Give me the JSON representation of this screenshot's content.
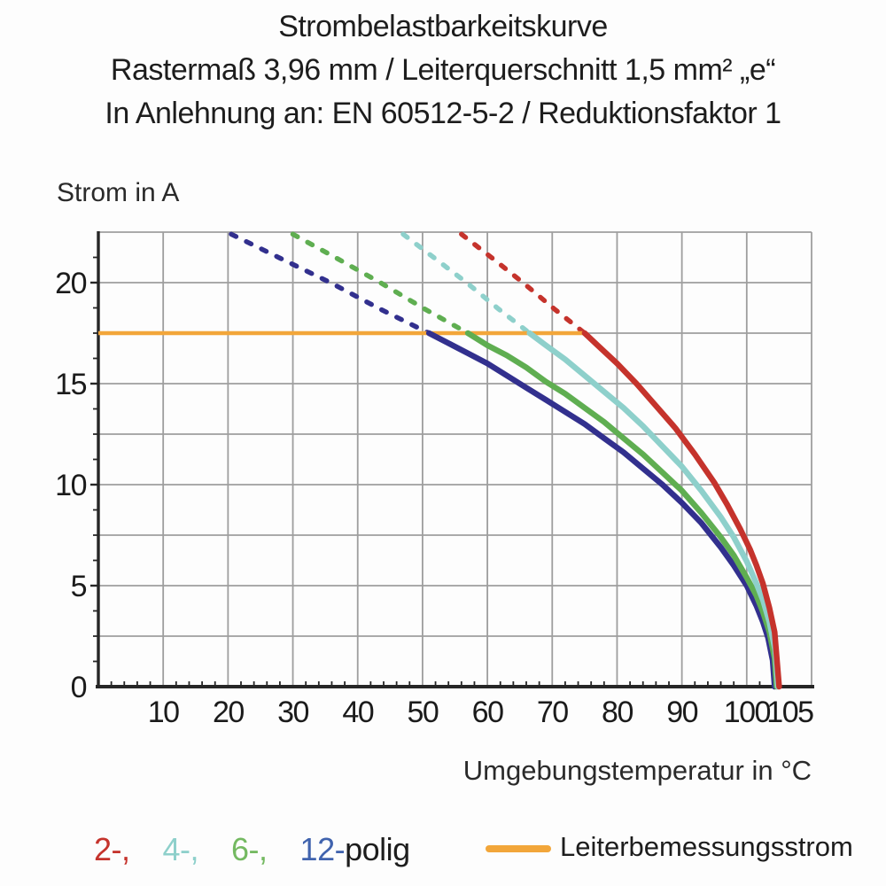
{
  "title": {
    "line1": "Strombelastbarkeitskurve",
    "line2": "Rastermaß 3,96 mm / Leiterquerschnitt 1,5 mm² „e“",
    "line3": "In Anlehnung an: EN 60512-5-2 / Reduktionsfaktor 1"
  },
  "chart_data": {
    "type": "line",
    "ylabel": "Strom in A",
    "xlabel": "Umgebungstemperatur in °C",
    "xlim": [
      0,
      110
    ],
    "ylim": [
      0,
      22.5
    ],
    "x_tick_labels": [
      10,
      20,
      30,
      40,
      50,
      60,
      70,
      80,
      90,
      100,
      105
    ],
    "x_grid_step": 10,
    "x_minor_tick_step": 2,
    "y_tick_labels": [
      0,
      5,
      10,
      15,
      20
    ],
    "y_grid_step": 2.5,
    "y_minor_tick_step": 1.25,
    "grid": true,
    "rated_line": {
      "label": "Leiterbemessungsstrom",
      "current_a": 17.5,
      "x_from": 0,
      "x_to": 75,
      "color": "#f2a63a"
    },
    "series": [
      {
        "name": "12-polig",
        "poles": 12,
        "color": "#32308e",
        "style_above_rated": "dashed",
        "dashed": [
          [
            20.5,
            22.4
          ],
          [
            28.1,
            21.2
          ],
          [
            35.8,
            20.0
          ],
          [
            43.4,
            18.7
          ],
          [
            51,
            17.5
          ]
        ],
        "solid": [
          [
            51,
            17.5
          ],
          [
            54,
            17.0
          ],
          [
            57,
            16.5
          ],
          [
            60,
            16.0
          ],
          [
            63,
            15.4
          ],
          [
            66,
            14.8
          ],
          [
            69,
            14.2
          ],
          [
            72,
            13.6
          ],
          [
            75,
            13.0
          ],
          [
            78,
            12.3
          ],
          [
            81,
            11.6
          ],
          [
            84,
            10.8
          ],
          [
            87,
            10.0
          ],
          [
            90,
            9.1
          ],
          [
            93,
            8.1
          ],
          [
            96,
            6.9
          ],
          [
            98,
            6.0
          ],
          [
            100,
            5.0
          ],
          [
            101.5,
            4.0
          ],
          [
            102.5,
            3.2
          ],
          [
            103.3,
            2.4
          ],
          [
            104,
            1.3
          ],
          [
            104.3,
            0
          ]
        ]
      },
      {
        "name": "6-polig",
        "poles": 6,
        "color": "#5fae51",
        "style_above_rated": "dashed",
        "dashed": [
          [
            30,
            22.4
          ],
          [
            36.8,
            21.2
          ],
          [
            43.5,
            20.0
          ],
          [
            50.3,
            18.7
          ],
          [
            57,
            17.5
          ]
        ],
        "solid": [
          [
            57,
            17.5
          ],
          [
            60,
            16.9
          ],
          [
            63,
            16.4
          ],
          [
            66,
            15.8
          ],
          [
            69,
            15.1
          ],
          [
            72,
            14.5
          ],
          [
            75,
            13.8
          ],
          [
            78,
            13.1
          ],
          [
            81,
            12.3
          ],
          [
            84,
            11.5
          ],
          [
            87,
            10.6
          ],
          [
            90,
            9.7
          ],
          [
            93,
            8.6
          ],
          [
            96,
            7.4
          ],
          [
            98,
            6.5
          ],
          [
            100,
            5.4
          ],
          [
            101.5,
            4.5
          ],
          [
            102.5,
            3.7
          ],
          [
            103.5,
            2.7
          ],
          [
            104.3,
            1.4
          ],
          [
            104.6,
            0
          ]
        ]
      },
      {
        "name": "4-polig",
        "poles": 4,
        "color": "#8ed0cb",
        "style_above_rated": "dashed",
        "dashed": [
          [
            47,
            22.4
          ],
          [
            51.9,
            21.2
          ],
          [
            56.8,
            20.0
          ],
          [
            61.7,
            18.7
          ],
          [
            66.5,
            17.5
          ]
        ],
        "solid": [
          [
            66.5,
            17.5
          ],
          [
            69,
            16.9
          ],
          [
            72,
            16.2
          ],
          [
            75,
            15.4
          ],
          [
            78,
            14.6
          ],
          [
            81,
            13.8
          ],
          [
            84,
            12.9
          ],
          [
            87,
            11.9
          ],
          [
            90,
            10.9
          ],
          [
            93,
            9.7
          ],
          [
            96,
            8.4
          ],
          [
            98,
            7.4
          ],
          [
            100,
            6.2
          ],
          [
            101.5,
            5.1
          ],
          [
            102.5,
            4.3
          ],
          [
            103.5,
            3.2
          ],
          [
            104.4,
            1.8
          ],
          [
            104.8,
            0
          ]
        ]
      },
      {
        "name": "2-polig",
        "poles": 2,
        "color": "#c5332c",
        "style_above_rated": "dashed",
        "dashed": [
          [
            56,
            22.4
          ],
          [
            60.8,
            21.2
          ],
          [
            65.5,
            20.0
          ],
          [
            70.3,
            18.7
          ],
          [
            75,
            17.5
          ]
        ],
        "solid": [
          [
            75,
            17.5
          ],
          [
            77,
            16.9
          ],
          [
            80,
            16.0
          ],
          [
            83,
            15.0
          ],
          [
            86,
            13.9
          ],
          [
            89,
            12.8
          ],
          [
            92,
            11.5
          ],
          [
            95,
            10.1
          ],
          [
            97,
            9.0
          ],
          [
            99,
            7.8
          ],
          [
            100.5,
            6.8
          ],
          [
            101.5,
            6.0
          ],
          [
            102.5,
            5.1
          ],
          [
            103.5,
            3.9
          ],
          [
            104.3,
            2.7
          ],
          [
            105,
            0
          ]
        ]
      }
    ]
  },
  "legend": {
    "pole_items": [
      {
        "label": "2-,",
        "color": "#c5332c"
      },
      {
        "label": "4-,",
        "color": "#8ed0cb"
      },
      {
        "label": "6-,",
        "color": "#74b961"
      },
      {
        "label": "12-",
        "color": "#4063ae"
      }
    ],
    "pole_suffix": "polig",
    "rated_label": "Leiterbemessungsstrom"
  },
  "style": {
    "grid_color": "#9e9e9e",
    "spine_color": "#262626",
    "label_color": "#1b1b1b"
  }
}
